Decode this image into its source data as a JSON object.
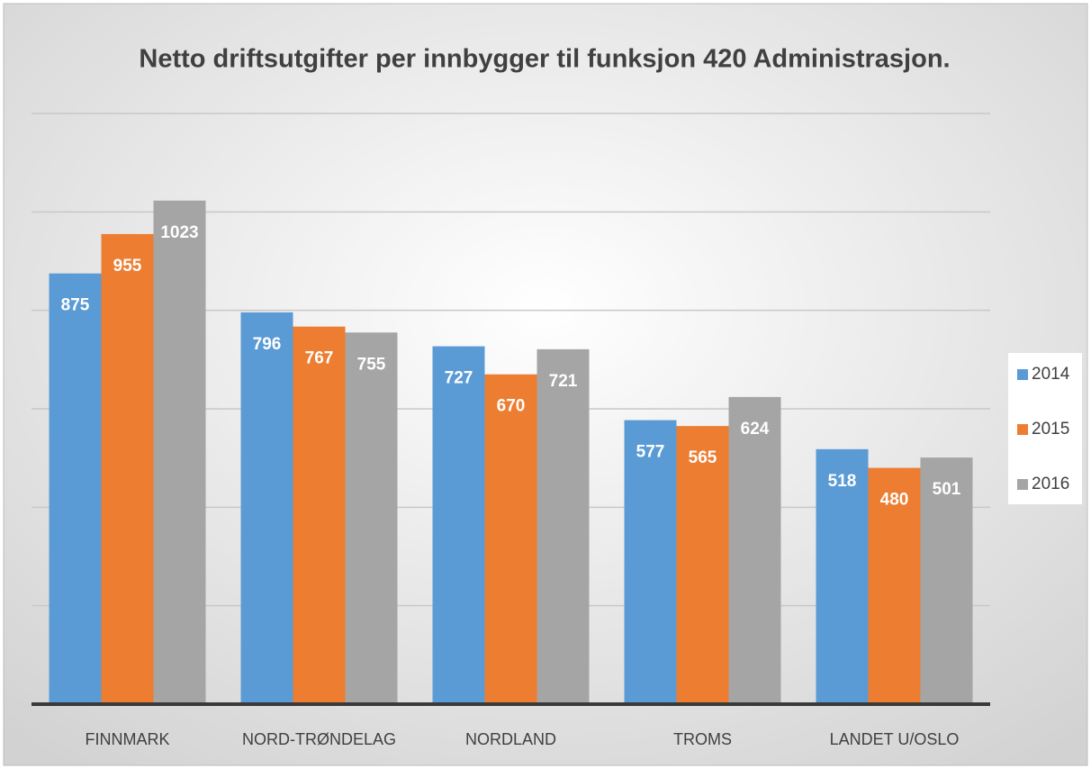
{
  "chart_data": {
    "type": "bar",
    "title": "Netto driftsutgifter per innbygger til funksjon 420 Administrasjon.",
    "categories": [
      "FINNMARK",
      "NORD-TRØNDELAG",
      "NORDLAND",
      "TROMS",
      "LANDET U/OSLO"
    ],
    "series": [
      {
        "name": "2014",
        "color": "#5b9bd5",
        "values": [
          875,
          796,
          727,
          577,
          518
        ]
      },
      {
        "name": "2015",
        "color": "#ed7d31",
        "values": [
          955,
          767,
          670,
          565,
          480
        ]
      },
      {
        "name": "2016",
        "color": "#a5a5a5",
        "values": [
          1023,
          755,
          721,
          624,
          501
        ]
      }
    ],
    "ylim": [
      0,
      1200
    ],
    "yticks": [
      0,
      200,
      400,
      600,
      800,
      1000,
      1200
    ],
    "grid": true,
    "legend": "right"
  }
}
